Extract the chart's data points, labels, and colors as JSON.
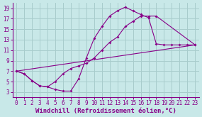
{
  "xlabel": "Windchill (Refroidissement éolien,°C)",
  "background_color": "#c8e8e8",
  "grid_color": "#a8cccc",
  "line_color": "#880088",
  "xlim": [
    -0.5,
    23.5
  ],
  "ylim": [
    2,
    20
  ],
  "xticks": [
    0,
    1,
    2,
    3,
    4,
    5,
    6,
    7,
    8,
    9,
    10,
    11,
    12,
    13,
    14,
    15,
    16,
    17,
    18,
    19,
    20,
    21,
    22,
    23
  ],
  "yticks": [
    3,
    5,
    7,
    9,
    11,
    13,
    15,
    17,
    19
  ],
  "line1_x": [
    0,
    1,
    2,
    3,
    4,
    5,
    6,
    7,
    8,
    9,
    10,
    11,
    12,
    13,
    14,
    15,
    16,
    17,
    18,
    19,
    20,
    21,
    22,
    23
  ],
  "line1_y": [
    7.0,
    6.5,
    5.2,
    4.2,
    4.0,
    3.5,
    3.2,
    3.2,
    5.5,
    9.5,
    13.2,
    15.5,
    17.5,
    18.5,
    19.2,
    18.5,
    17.8,
    17.2,
    12.2,
    12.0,
    12.0,
    12.0,
    12.0,
    12.0
  ],
  "line2_x": [
    0,
    1,
    2,
    3,
    4,
    5,
    6,
    7,
    8,
    9,
    10,
    11,
    12,
    13,
    14,
    15,
    16,
    17,
    18,
    23
  ],
  "line2_y": [
    7.0,
    6.5,
    5.2,
    4.2,
    4.0,
    5.0,
    6.5,
    7.5,
    8.0,
    8.5,
    9.5,
    11.0,
    12.5,
    13.5,
    15.5,
    16.5,
    17.5,
    17.5,
    17.5,
    12.0
  ],
  "line3_x": [
    0,
    23
  ],
  "line3_y": [
    7.0,
    12.0
  ],
  "tick_fontsize": 5.5,
  "label_fontsize": 6.5
}
